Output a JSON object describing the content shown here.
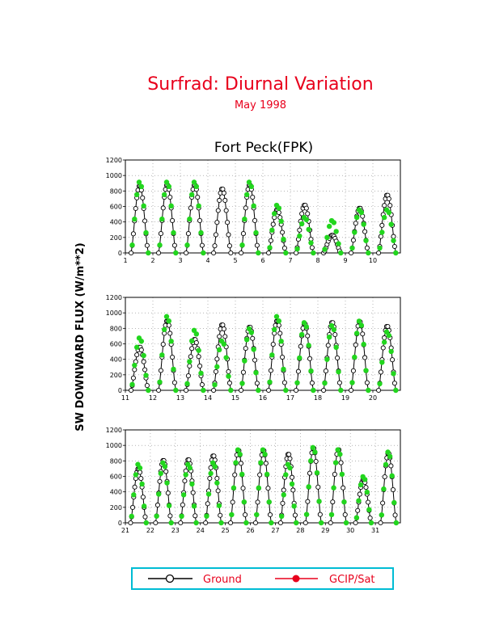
{
  "page": {
    "title": "Surfrad: Diurnal Variation",
    "subtitle": "May 1998",
    "station": "Fort Peck(FPK)",
    "ylabel": "SW DOWNWARD FLUX (W/m**2)"
  },
  "legend": {
    "items": [
      {
        "label": "Ground",
        "line_color": "#000000",
        "marker": "open-circle"
      },
      {
        "label": "GCIP/Sat",
        "line_color": "#e8001c",
        "marker": "filled-circle"
      }
    ]
  },
  "colors": {
    "ground": "#000000",
    "satellite": "#22d61e",
    "title": "#e8001c",
    "legend_box": "#00bcd4",
    "grid": "#888888"
  },
  "chart_data": [
    {
      "type": "line",
      "panel": "top",
      "xlim": [
        1,
        11
      ],
      "ylim": [
        0,
        1200
      ],
      "yticks": [
        0,
        200,
        400,
        600,
        800,
        1000,
        1200
      ],
      "xticks": [
        "1",
        "2",
        "3",
        "4",
        "5",
        "6",
        "7",
        "8",
        "9",
        "10"
      ],
      "grid": true,
      "days": [
        1,
        2,
        3,
        4,
        5,
        6,
        7,
        8,
        9,
        10
      ],
      "series": [
        {
          "name": "Ground",
          "daily_peak": [
            870,
            880,
            880,
            830,
            880,
            560,
            620,
            230,
            580,
            750
          ]
        },
        {
          "name": "GCIP/Sat",
          "daily_peak": [
            920,
            920,
            920,
            null,
            920,
            620,
            460,
            420,
            560,
            560
          ]
        }
      ]
    },
    {
      "type": "line",
      "panel": "middle",
      "xlim": [
        11,
        21
      ],
      "ylim": [
        0,
        1200
      ],
      "yticks": [
        0,
        200,
        400,
        600,
        800,
        1000,
        1200
      ],
      "xticks": [
        "11",
        "12",
        "13",
        "14",
        "15",
        "16",
        "17",
        "18",
        "19",
        "20"
      ],
      "grid": true,
      "days": [
        11,
        12,
        13,
        14,
        15,
        16,
        17,
        18,
        19,
        20
      ],
      "series": [
        {
          "name": "Ground",
          "daily_peak": [
            560,
            900,
            660,
            850,
            820,
            900,
            860,
            880,
            890,
            830
          ]
        },
        {
          "name": "GCIP/Sat",
          "daily_peak": [
            680,
            960,
            780,
            640,
            800,
            960,
            880,
            840,
            900,
            760
          ]
        }
      ]
    },
    {
      "type": "line",
      "panel": "bottom",
      "xlim": [
        21,
        32
      ],
      "ylim": [
        0,
        1200
      ],
      "yticks": [
        0,
        200,
        400,
        600,
        800,
        1000,
        1200
      ],
      "xticks": [
        "21",
        "22",
        "23",
        "24",
        "25",
        "26",
        "27",
        "28",
        "29",
        "30",
        "31"
      ],
      "grid": true,
      "days": [
        21,
        22,
        23,
        24,
        25,
        26,
        27,
        28,
        29,
        30,
        31
      ],
      "series": [
        {
          "name": "Ground",
          "daily_peak": [
            700,
            810,
            820,
            870,
            940,
            940,
            890,
            970,
            950,
            560,
            900
          ]
        },
        {
          "name": "GCIP/Sat",
          "daily_peak": [
            760,
            780,
            760,
            780,
            950,
            950,
            760,
            980,
            950,
            600,
            920
          ]
        }
      ]
    }
  ]
}
